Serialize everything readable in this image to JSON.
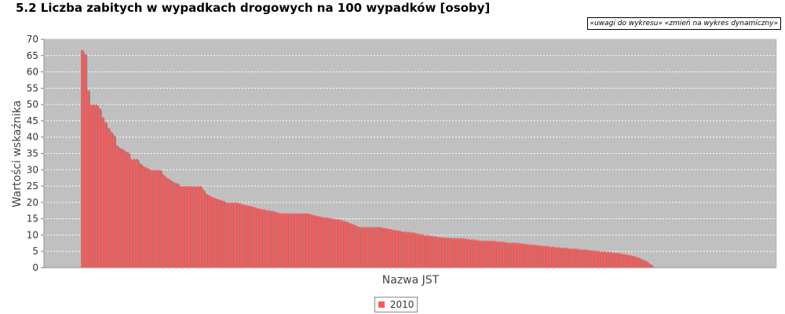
{
  "page": {
    "title": "5.2 Liczba zabitych w wypadkach drogowych na 100 wypadków [osoby]",
    "link_notes": "«uwagi do wykresu»",
    "link_dynamic": "«zmień na wykres dynamiczny»"
  },
  "chart_data": {
    "type": "bar",
    "xlabel": "Nazwa JST",
    "ylabel": "Wartości wskaźnika",
    "ylim": [
      0,
      70
    ],
    "yticks": [
      "0",
      "5",
      "10",
      "15",
      "20",
      "25",
      "30",
      "35",
      "40",
      "45",
      "50",
      "55",
      "60",
      "65",
      "70"
    ],
    "grid": true,
    "legend_position": "bottom-center",
    "series": [
      {
        "name": "2010",
        "color": "#ff5a5a",
        "shadow_color": "#808080",
        "values": [
          66.7,
          65.5,
          54.5,
          50.0,
          50.0,
          50.0,
          48.9,
          46.2,
          44.7,
          42.9,
          41.7,
          40.6,
          37.5,
          36.8,
          36.4,
          35.7,
          35.3,
          33.3,
          33.3,
          33.3,
          32.1,
          31.3,
          30.8,
          30.4,
          30.0,
          30.0,
          30.0,
          30.0,
          28.6,
          27.8,
          27.3,
          26.7,
          26.1,
          25.9,
          25.0,
          25.0,
          25.0,
          25.0,
          25.0,
          25.0,
          25.0,
          25.0,
          23.8,
          22.7,
          22.2,
          21.7,
          21.4,
          21.1,
          20.8,
          20.5,
          20.0,
          20.0,
          20.0,
          20.0,
          20.0,
          19.6,
          19.4,
          19.2,
          19.0,
          18.8,
          18.5,
          18.2,
          18.0,
          17.9,
          17.6,
          17.6,
          17.4,
          17.2,
          16.9,
          16.7,
          16.7,
          16.7,
          16.7,
          16.7,
          16.7,
          16.7,
          16.7,
          16.7,
          16.7,
          16.5,
          16.2,
          16.0,
          15.8,
          15.6,
          15.4,
          15.4,
          15.2,
          15.0,
          14.9,
          14.8,
          14.6,
          14.3,
          14.0,
          13.6,
          13.3,
          12.9,
          12.5,
          12.5,
          12.5,
          12.5,
          12.5,
          12.5,
          12.5,
          12.5,
          12.3,
          12.2,
          12.0,
          11.8,
          11.6,
          11.5,
          11.4,
          11.1,
          11.1,
          11.0,
          10.9,
          10.8,
          10.5,
          10.3,
          10.2,
          10.0,
          10.0,
          9.8,
          9.7,
          9.5,
          9.4,
          9.3,
          9.3,
          9.2,
          9.1,
          9.1,
          9.1,
          9.1,
          9.0,
          8.9,
          8.7,
          8.7,
          8.6,
          8.5,
          8.3,
          8.3,
          8.3,
          8.3,
          8.3,
          8.2,
          8.1,
          8.0,
          8.0,
          7.8,
          7.7,
          7.7,
          7.7,
          7.6,
          7.5,
          7.4,
          7.3,
          7.1,
          7.1,
          7.0,
          6.9,
          6.8,
          6.7,
          6.7,
          6.5,
          6.5,
          6.3,
          6.3,
          6.2,
          6.1,
          6.1,
          5.9,
          5.9,
          5.9,
          5.7,
          5.6,
          5.6,
          5.5,
          5.4,
          5.3,
          5.3,
          5.1,
          5.0,
          5.0,
          4.9,
          4.8,
          4.7,
          4.6,
          4.5,
          4.3,
          4.2,
          4.0,
          3.8,
          3.6,
          3.3,
          3.0,
          2.6,
          2.2,
          1.6,
          1.0
        ]
      }
    ]
  }
}
